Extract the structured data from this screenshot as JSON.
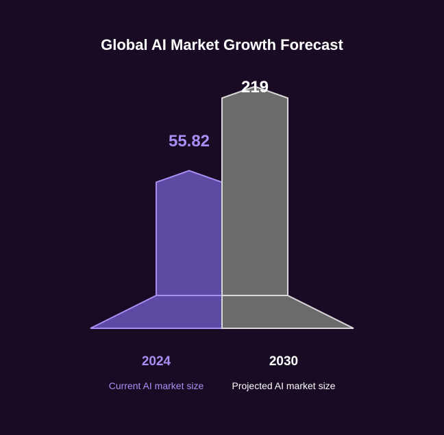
{
  "chart_data": {
    "type": "bar",
    "title": "Global AI Market Growth Forecast",
    "categories": [
      "2024",
      "2030"
    ],
    "values": [
      55.82,
      219
    ],
    "data_labels": [
      "55.82",
      "219"
    ],
    "descriptions": [
      "Current AI market size",
      "Projected AI market size"
    ],
    "colors": {
      "background": "#1a0b24",
      "series": [
        {
          "fill": "#5c4aa3",
          "stroke": "#a98ff5",
          "label": "#a98ff5"
        },
        {
          "fill": "#6b6b6b",
          "stroke": "#d9d9d9",
          "label": "#ffffff"
        }
      ]
    }
  }
}
